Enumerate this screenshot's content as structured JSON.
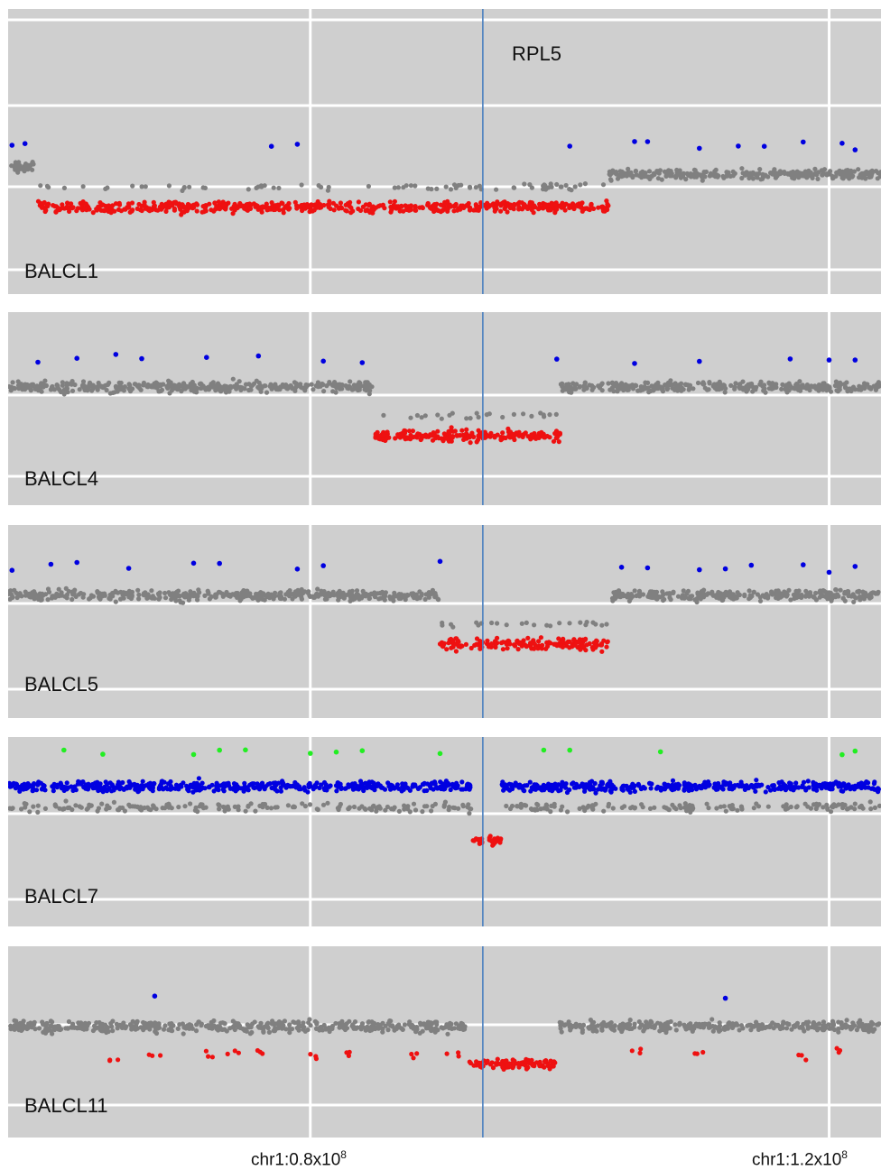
{
  "gene_label": "RPL5",
  "xticks": [
    {
      "base": "chr1:0.8x10",
      "exp": "8"
    },
    {
      "base": "chr1:1.2x10",
      "exp": "8"
    }
  ],
  "colors": {
    "background": "#cfcfcf",
    "grid": "#ffffff",
    "normal": "#808080",
    "gain": "#0000e0",
    "high_gain": "#22ee22",
    "loss": "#ee1111",
    "gene_line": "#4a7fbf"
  },
  "chart_data": {
    "type": "scatter",
    "xlim": [
      0.567,
      1.24
    ],
    "x_unit": "x10^8",
    "gene": {
      "name": "RPL5",
      "x": 0.933
    },
    "samples": [
      {
        "name": "BALCL1",
        "segments": [
          {
            "x_start": 0.567,
            "x_end": 0.59,
            "level": 0.25,
            "class": "normal"
          },
          {
            "x_start": 0.59,
            "x_end": 1.03,
            "level": -0.25,
            "class": "loss"
          },
          {
            "x_start": 1.03,
            "x_end": 1.24,
            "level": 0.15,
            "class": "normal"
          }
        ],
        "gain_outliers_x": [
          0.57,
          0.58,
          0.77,
          0.79,
          1.0,
          1.05,
          1.06,
          1.1,
          1.13,
          1.15,
          1.18,
          1.21,
          1.22
        ]
      },
      {
        "name": "BALCL4",
        "segments": [
          {
            "x_start": 0.567,
            "x_end": 0.85,
            "level": 0.15,
            "class": "normal"
          },
          {
            "x_start": 0.85,
            "x_end": 0.993,
            "level": -0.75,
            "class": "loss"
          },
          {
            "x_start": 0.993,
            "x_end": 1.24,
            "level": 0.15,
            "class": "normal"
          }
        ],
        "gain_outliers_x": [
          0.59,
          0.62,
          0.65,
          0.67,
          0.72,
          0.76,
          0.81,
          0.84,
          0.99,
          1.05,
          1.1,
          1.17,
          1.2,
          1.22
        ]
      },
      {
        "name": "BALCL5",
        "segments": [
          {
            "x_start": 0.567,
            "x_end": 0.9,
            "level": 0.15,
            "class": "normal"
          },
          {
            "x_start": 0.9,
            "x_end": 1.03,
            "level": -0.75,
            "class": "loss"
          },
          {
            "x_start": 1.03,
            "x_end": 1.24,
            "level": 0.15,
            "class": "normal"
          }
        ],
        "gain_outliers_x": [
          0.57,
          0.6,
          0.62,
          0.66,
          0.71,
          0.73,
          0.79,
          0.81,
          0.9,
          1.04,
          1.06,
          1.1,
          1.12,
          1.14,
          1.18,
          1.2,
          1.22
        ]
      },
      {
        "name": "BALCL7",
        "segments": [
          {
            "x_start": 0.567,
            "x_end": 0.925,
            "level": 0.5,
            "class": "gain"
          },
          {
            "x_start": 0.925,
            "x_end": 0.947,
            "level": -1.5,
            "class": "loss"
          },
          {
            "x_start": 0.947,
            "x_end": 1.24,
            "level": 0.5,
            "class": "gain"
          }
        ],
        "high_gain_outliers_x": [
          0.61,
          0.64,
          0.71,
          0.73,
          0.75,
          0.8,
          0.82,
          0.84,
          0.9,
          0.98,
          1.0,
          1.07,
          1.21,
          1.22
        ]
      },
      {
        "name": "BALCL11",
        "segments": [
          {
            "x_start": 0.567,
            "x_end": 0.92,
            "level": 0.1,
            "class": "normal"
          },
          {
            "x_start": 0.92,
            "x_end": 0.99,
            "level": -0.6,
            "class": "loss"
          },
          {
            "x_start": 0.99,
            "x_end": 1.24,
            "level": 0.1,
            "class": "normal"
          }
        ],
        "loss_outliers_x": [
          0.65,
          0.68,
          0.72,
          0.74,
          0.76,
          0.8,
          0.83,
          0.88,
          0.91,
          1.05,
          1.1,
          1.18,
          1.21
        ],
        "gain_outliers_x": [
          0.68,
          1.12
        ]
      }
    ]
  }
}
